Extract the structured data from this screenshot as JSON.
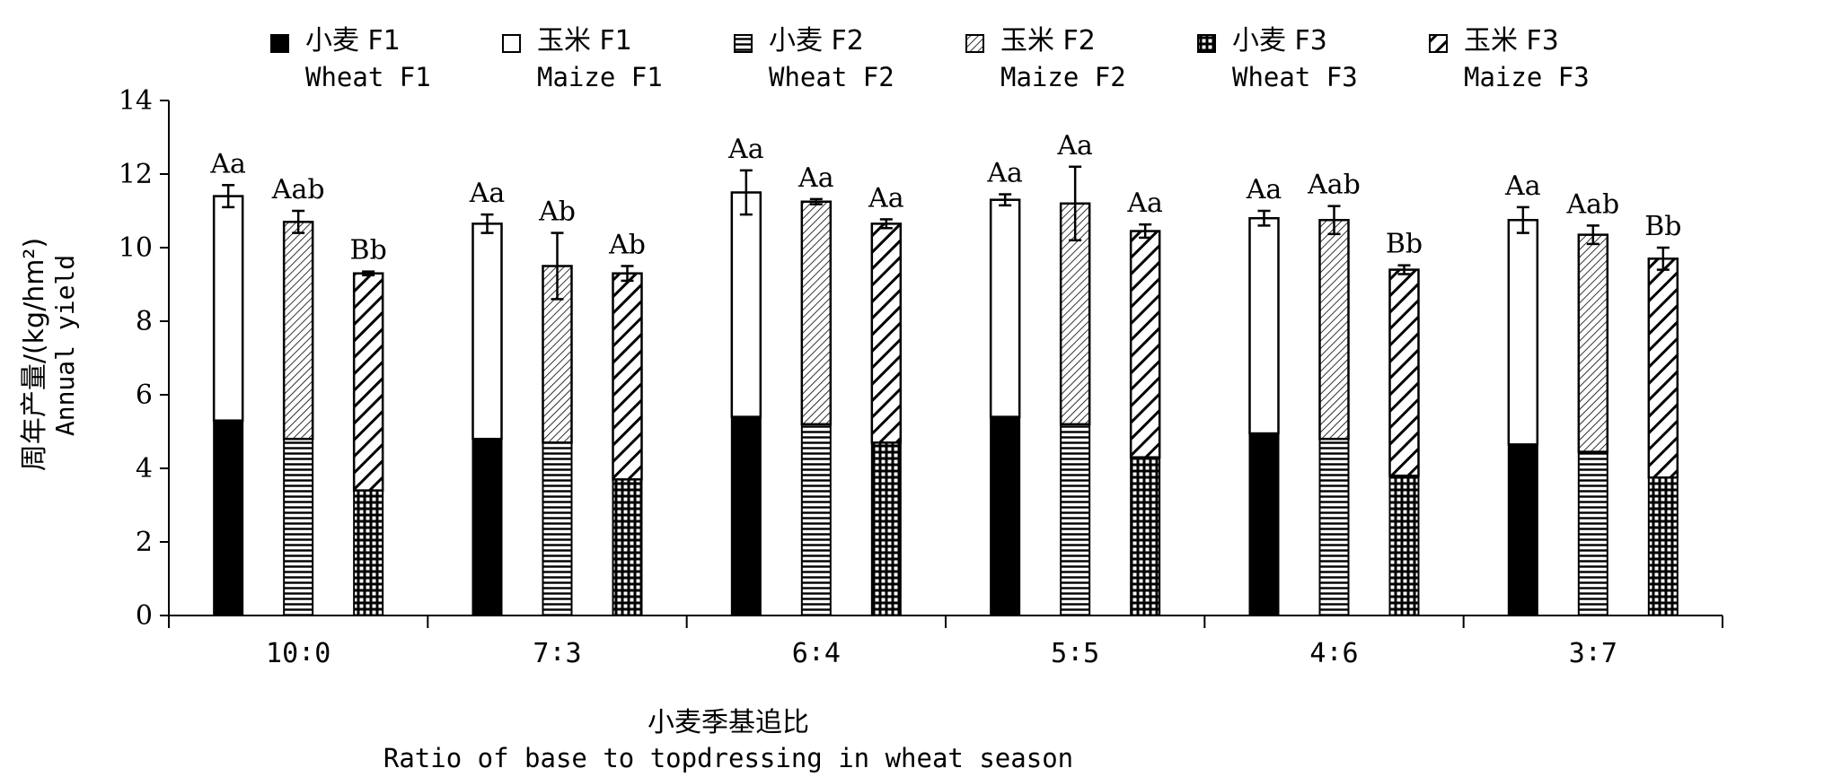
{
  "chart_data": {
    "type": "bar",
    "stacked": true,
    "categories": [
      "10∶0",
      "7∶3",
      "6∶4",
      "5∶5",
      "4∶6",
      "3∶7"
    ],
    "xlabel_cn": "小麦季基追比",
    "xlabel_en": "Ratio of base to topdressing in wheat season",
    "ylabel_cn": "周年产量/(kg/hm²)",
    "ylabel_en": "Annual yield",
    "ylim": [
      0,
      14
    ],
    "yticks": [
      0,
      2,
      4,
      6,
      8,
      10,
      12,
      14
    ],
    "legend_position": "top",
    "legend": [
      {
        "cn": "小麦 F1",
        "en": "Wheat F1",
        "pattern": "solid-black"
      },
      {
        "cn": "玉米 F1",
        "en": "Maize F1",
        "pattern": "white"
      },
      {
        "cn": "小麦 F2",
        "en": "Wheat F2",
        "pattern": "horizontal-lines"
      },
      {
        "cn": "玉米 F2",
        "en": "Maize F2",
        "pattern": "fine-diagonal"
      },
      {
        "cn": "小麦 F3",
        "en": "Wheat F3",
        "pattern": "dots"
      },
      {
        "cn": "玉米 F3",
        "en": "Maize F3",
        "pattern": "wide-diagonal"
      }
    ],
    "fertilizers": [
      "F1",
      "F2",
      "F3"
    ],
    "wheat_values": [
      [
        5.3,
        4.8,
        3.4
      ],
      [
        4.8,
        4.7,
        3.7
      ],
      [
        5.4,
        5.2,
        4.7
      ],
      [
        5.4,
        5.2,
        4.3
      ],
      [
        4.95,
        4.8,
        3.8
      ],
      [
        4.65,
        4.45,
        3.75
      ]
    ],
    "total_values": [
      [
        11.4,
        10.7,
        9.3
      ],
      [
        10.65,
        9.5,
        9.3
      ],
      [
        11.5,
        11.25,
        10.65
      ],
      [
        11.3,
        11.2,
        10.45
      ],
      [
        10.8,
        10.75,
        9.4
      ],
      [
        10.75,
        10.35,
        9.7
      ]
    ],
    "error": [
      [
        0.3,
        0.3,
        0.05
      ],
      [
        0.25,
        0.9,
        0.2
      ],
      [
        0.6,
        0.07,
        0.12
      ],
      [
        0.15,
        1.0,
        0.18
      ],
      [
        0.2,
        0.38,
        0.12
      ],
      [
        0.35,
        0.25,
        0.3
      ]
    ],
    "significance_labels": [
      [
        "Aa",
        "Aab",
        "Bb"
      ],
      [
        "Aa",
        "Ab",
        "Ab"
      ],
      [
        "Aa",
        "Aa",
        "Aa"
      ],
      [
        "Aa",
        "Aa",
        "Aa"
      ],
      [
        "Aa",
        "Aab",
        "Bb"
      ],
      [
        "Aa",
        "Aab",
        "Bb"
      ]
    ],
    "colors": {
      "ink": "#000000",
      "background": "#ffffff"
    }
  }
}
